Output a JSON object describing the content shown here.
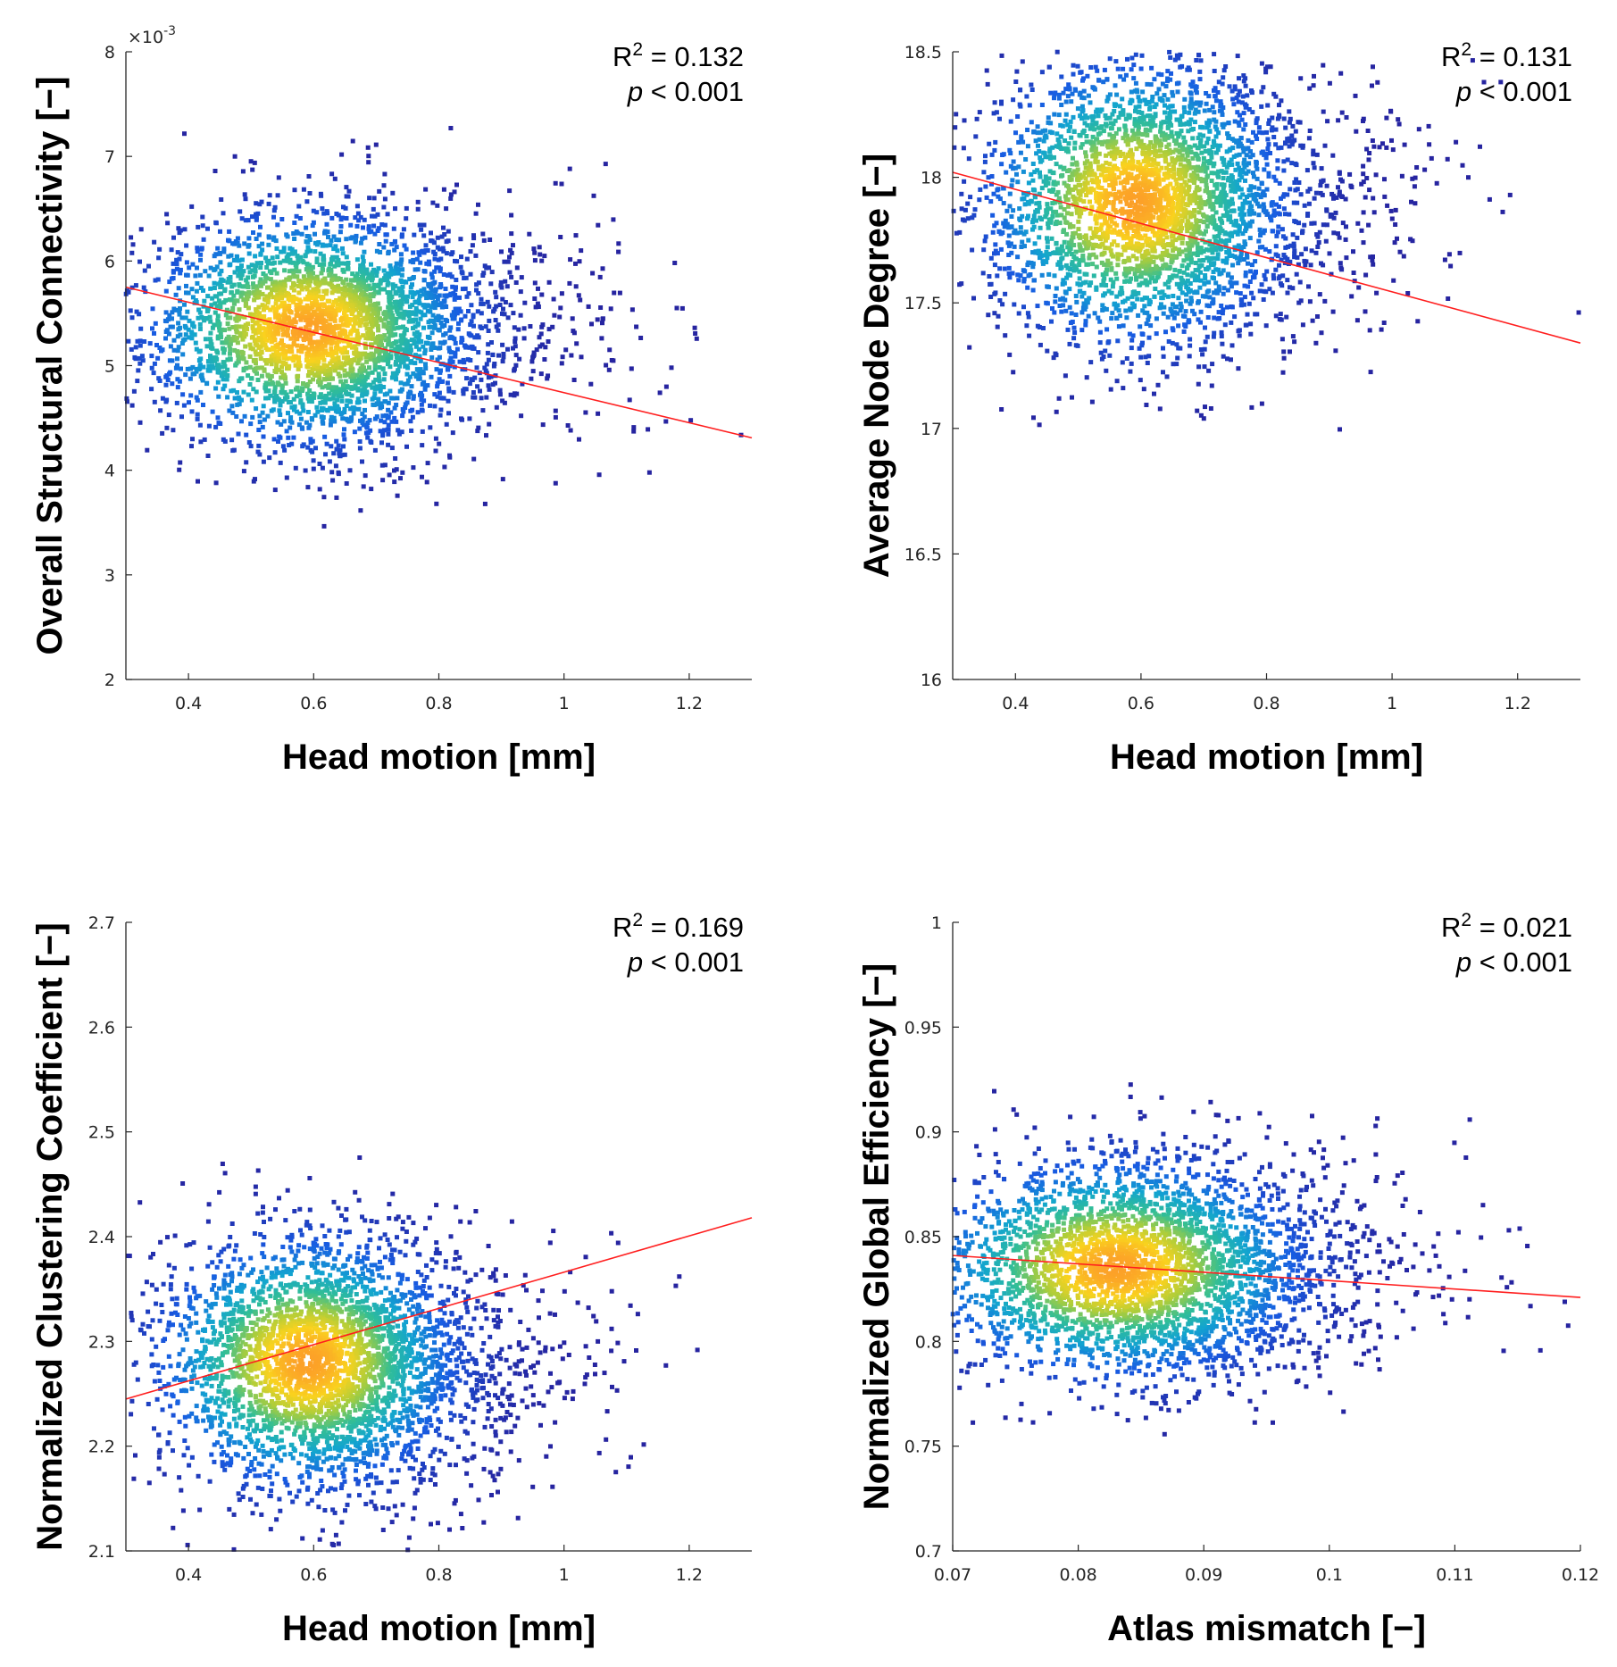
{
  "chart_data": [
    {
      "type": "scatter",
      "title": "",
      "xlabel": "Head motion [mm]",
      "ylabel": "Overall Structural Connectivity [−]",
      "xlim": [
        0.3,
        1.3
      ],
      "ylim": [
        2,
        8
      ],
      "xticks": [
        "0.4",
        "0.6",
        "0.8",
        "1",
        "1.2"
      ],
      "yticks": [
        "2",
        "3",
        "4",
        "5",
        "6",
        "7",
        "8"
      ],
      "y_exponent_label": "×10",
      "y_exponent_power": "-3",
      "r2_label": "R",
      "r2_sup": "2",
      "r2_value": " = 0.132",
      "p_label": "p",
      "p_value": " < 0.001",
      "density_center": {
        "x": 0.59,
        "y": 5.35
      },
      "spread": {
        "x": 0.13,
        "y": 0.55
      },
      "fit_line": {
        "x": [
          0.3,
          1.3
        ],
        "y": [
          5.75,
          4.31
        ]
      },
      "n_points": 3500
    },
    {
      "type": "scatter",
      "title": "",
      "xlabel": "Head motion [mm]",
      "ylabel": "Average Node Degree [−]",
      "xlim": [
        0.3,
        1.3
      ],
      "ylim": [
        16,
        18.5
      ],
      "xticks": [
        "0.4",
        "0.6",
        "0.8",
        "1",
        "1.2"
      ],
      "yticks": [
        "16",
        "16.5",
        "17",
        "17.5",
        "18",
        "18.5"
      ],
      "r2_label": "R",
      "r2_sup": "2",
      "r2_value": " = 0.131",
      "p_label": "p",
      "p_value": " < 0.001",
      "density_center": {
        "x": 0.59,
        "y": 17.9
      },
      "spread": {
        "x": 0.12,
        "y": 0.28
      },
      "fit_line": {
        "x": [
          0.3,
          1.3
        ],
        "y": [
          18.02,
          17.34
        ]
      },
      "n_points": 3500
    },
    {
      "type": "scatter",
      "title": "",
      "xlabel": "Head motion [mm]",
      "ylabel": "Normalized Clustering Coefficient [−]",
      "xlim": [
        0.3,
        1.3
      ],
      "ylim": [
        2.1,
        2.7
      ],
      "xticks": [
        "0.4",
        "0.6",
        "0.8",
        "1",
        "1.2"
      ],
      "yticks": [
        "2.1",
        "2.2",
        "2.3",
        "2.4",
        "2.5",
        "2.6",
        "2.7"
      ],
      "r2_label": "R",
      "r2_sup": "2",
      "r2_value": " = 0.169",
      "p_label": "p",
      "p_value": " < 0.001",
      "density_center": {
        "x": 0.59,
        "y": 2.28
      },
      "spread": {
        "x": 0.12,
        "y": 0.06
      },
      "fit_line": {
        "x": [
          0.3,
          1.3
        ],
        "y": [
          2.245,
          2.418
        ]
      },
      "n_points": 3500
    },
    {
      "type": "scatter",
      "title": "",
      "xlabel": "Atlas mismatch [−]",
      "ylabel": "Normalized Global Efficiency [−]",
      "xlim": [
        0.07,
        0.12
      ],
      "ylim": [
        0.7,
        1
      ],
      "xticks": [
        "0.07",
        "0.08",
        "0.09",
        "0.1",
        "0.11",
        "0.12"
      ],
      "yticks": [
        "0.7",
        "0.75",
        "0.8",
        "0.85",
        "0.9",
        "0.95",
        "1"
      ],
      "r2_label": "R",
      "r2_sup": "2",
      "r2_value": " = 0.021",
      "p_label": "p",
      "p_value": " < 0.001",
      "density_center": {
        "x": 0.083,
        "y": 0.835
      },
      "spread": {
        "x": 0.0075,
        "y": 0.026
      },
      "fit_line": {
        "x": [
          0.07,
          0.12
        ],
        "y": [
          0.841,
          0.821
        ]
      },
      "n_points": 3500
    }
  ]
}
